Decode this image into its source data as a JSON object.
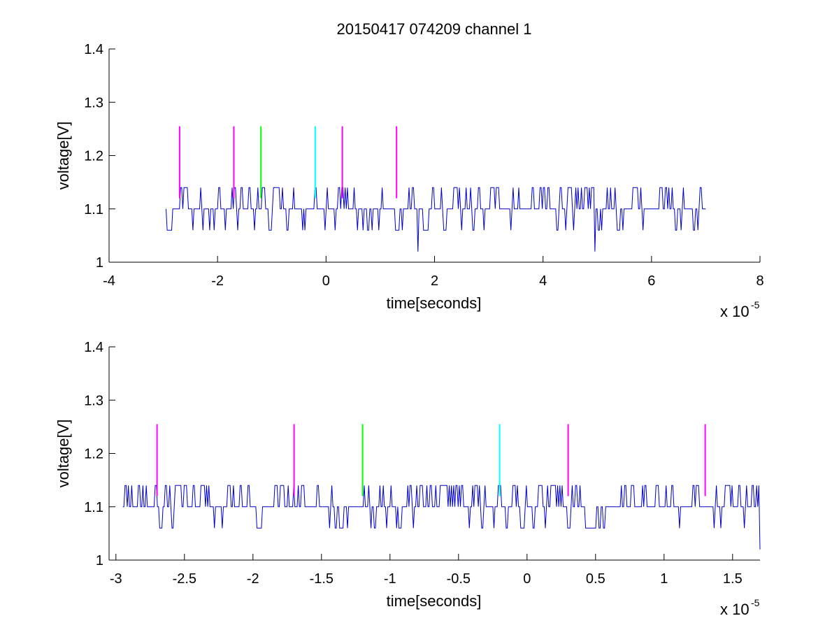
{
  "figure": {
    "title": "20150417 074209 channel 1",
    "background": "#ffffff",
    "trace_color": "#0000cc",
    "marker_colors": {
      "magenta": "#ff00ff",
      "green": "#00ff00",
      "cyan": "#00ffff"
    }
  },
  "chart_data": [
    {
      "type": "line",
      "title": "20150417 074209 channel 1",
      "xlabel": "time[seconds]",
      "ylabel": "voltage[V]",
      "x_exponent_label": "x 10",
      "x_exponent": "-5",
      "x_scale": 1e-05,
      "xlim": [
        -4,
        8
      ],
      "ylim": [
        1.0,
        1.4
      ],
      "xticks": [
        -4,
        -2,
        0,
        2,
        4,
        6,
        8
      ],
      "xtick_labels": [
        "-4",
        "-2",
        "0",
        "2",
        "4",
        "6",
        "8"
      ],
      "yticks": [
        1.0,
        1.1,
        1.2,
        1.3,
        1.4
      ],
      "ytick_labels": [
        "1",
        "1.1",
        "1.2",
        "1.3",
        "1.4"
      ],
      "grid": false,
      "series": [
        {
          "type": "noisy-trace",
          "color": "#0000cc",
          "x_start": -2.95,
          "x_end": 7.0,
          "baseline": 1.1,
          "step_up": 1.14,
          "step_down": 1.06,
          "deep_dips": [
            {
              "x": 1.7,
              "y": 1.02
            },
            {
              "x": 4.95,
              "y": 1.02
            }
          ]
        }
      ],
      "markers": [
        {
          "x": -2.7,
          "y_bottom": 1.12,
          "y_top": 1.255,
          "color": "#ff00ff"
        },
        {
          "x": -1.7,
          "y_bottom": 1.12,
          "y_top": 1.255,
          "color": "#ff00ff"
        },
        {
          "x": -1.2,
          "y_bottom": 1.12,
          "y_top": 1.255,
          "color": "#00ff00"
        },
        {
          "x": -0.2,
          "y_bottom": 1.12,
          "y_top": 1.255,
          "color": "#00ffff"
        },
        {
          "x": 0.3,
          "y_bottom": 1.12,
          "y_top": 1.255,
          "color": "#ff00ff"
        },
        {
          "x": 1.3,
          "y_bottom": 1.12,
          "y_top": 1.255,
          "color": "#ff00ff"
        }
      ]
    },
    {
      "type": "line",
      "title": "",
      "xlabel": "time[seconds]",
      "ylabel": "voltage[V]",
      "x_exponent_label": "x 10",
      "x_exponent": "-5",
      "x_scale": 1e-05,
      "xlim": [
        -3.05,
        1.7
      ],
      "ylim": [
        1.0,
        1.4
      ],
      "xticks": [
        -3,
        -2.5,
        -2,
        -1.5,
        -1,
        -0.5,
        0,
        0.5,
        1,
        1.5
      ],
      "xtick_labels": [
        "-3",
        "-2.5",
        "-2",
        "-1.5",
        "-1",
        "-0.5",
        "0",
        "0.5",
        "1",
        "1.5"
      ],
      "yticks": [
        1.0,
        1.1,
        1.2,
        1.3,
        1.4
      ],
      "ytick_labels": [
        "1",
        "1.1",
        "1.2",
        "1.3",
        "1.4"
      ],
      "grid": false,
      "series": [
        {
          "type": "noisy-trace",
          "color": "#0000cc",
          "x_start": -2.95,
          "x_end": 1.7,
          "baseline": 1.1,
          "step_up": 1.14,
          "step_down": 1.06,
          "deep_dips": [
            {
              "x": 1.7,
              "y": 1.02
            }
          ]
        }
      ],
      "markers": [
        {
          "x": -2.7,
          "y_bottom": 1.12,
          "y_top": 1.255,
          "color": "#ff00ff"
        },
        {
          "x": -1.7,
          "y_bottom": 1.12,
          "y_top": 1.255,
          "color": "#ff00ff"
        },
        {
          "x": -1.2,
          "y_bottom": 1.12,
          "y_top": 1.255,
          "color": "#00ff00"
        },
        {
          "x": -0.2,
          "y_bottom": 1.12,
          "y_top": 1.255,
          "color": "#00ffff"
        },
        {
          "x": 0.3,
          "y_bottom": 1.12,
          "y_top": 1.255,
          "color": "#ff00ff"
        },
        {
          "x": 1.3,
          "y_bottom": 1.12,
          "y_top": 1.255,
          "color": "#ff00ff"
        }
      ]
    }
  ]
}
